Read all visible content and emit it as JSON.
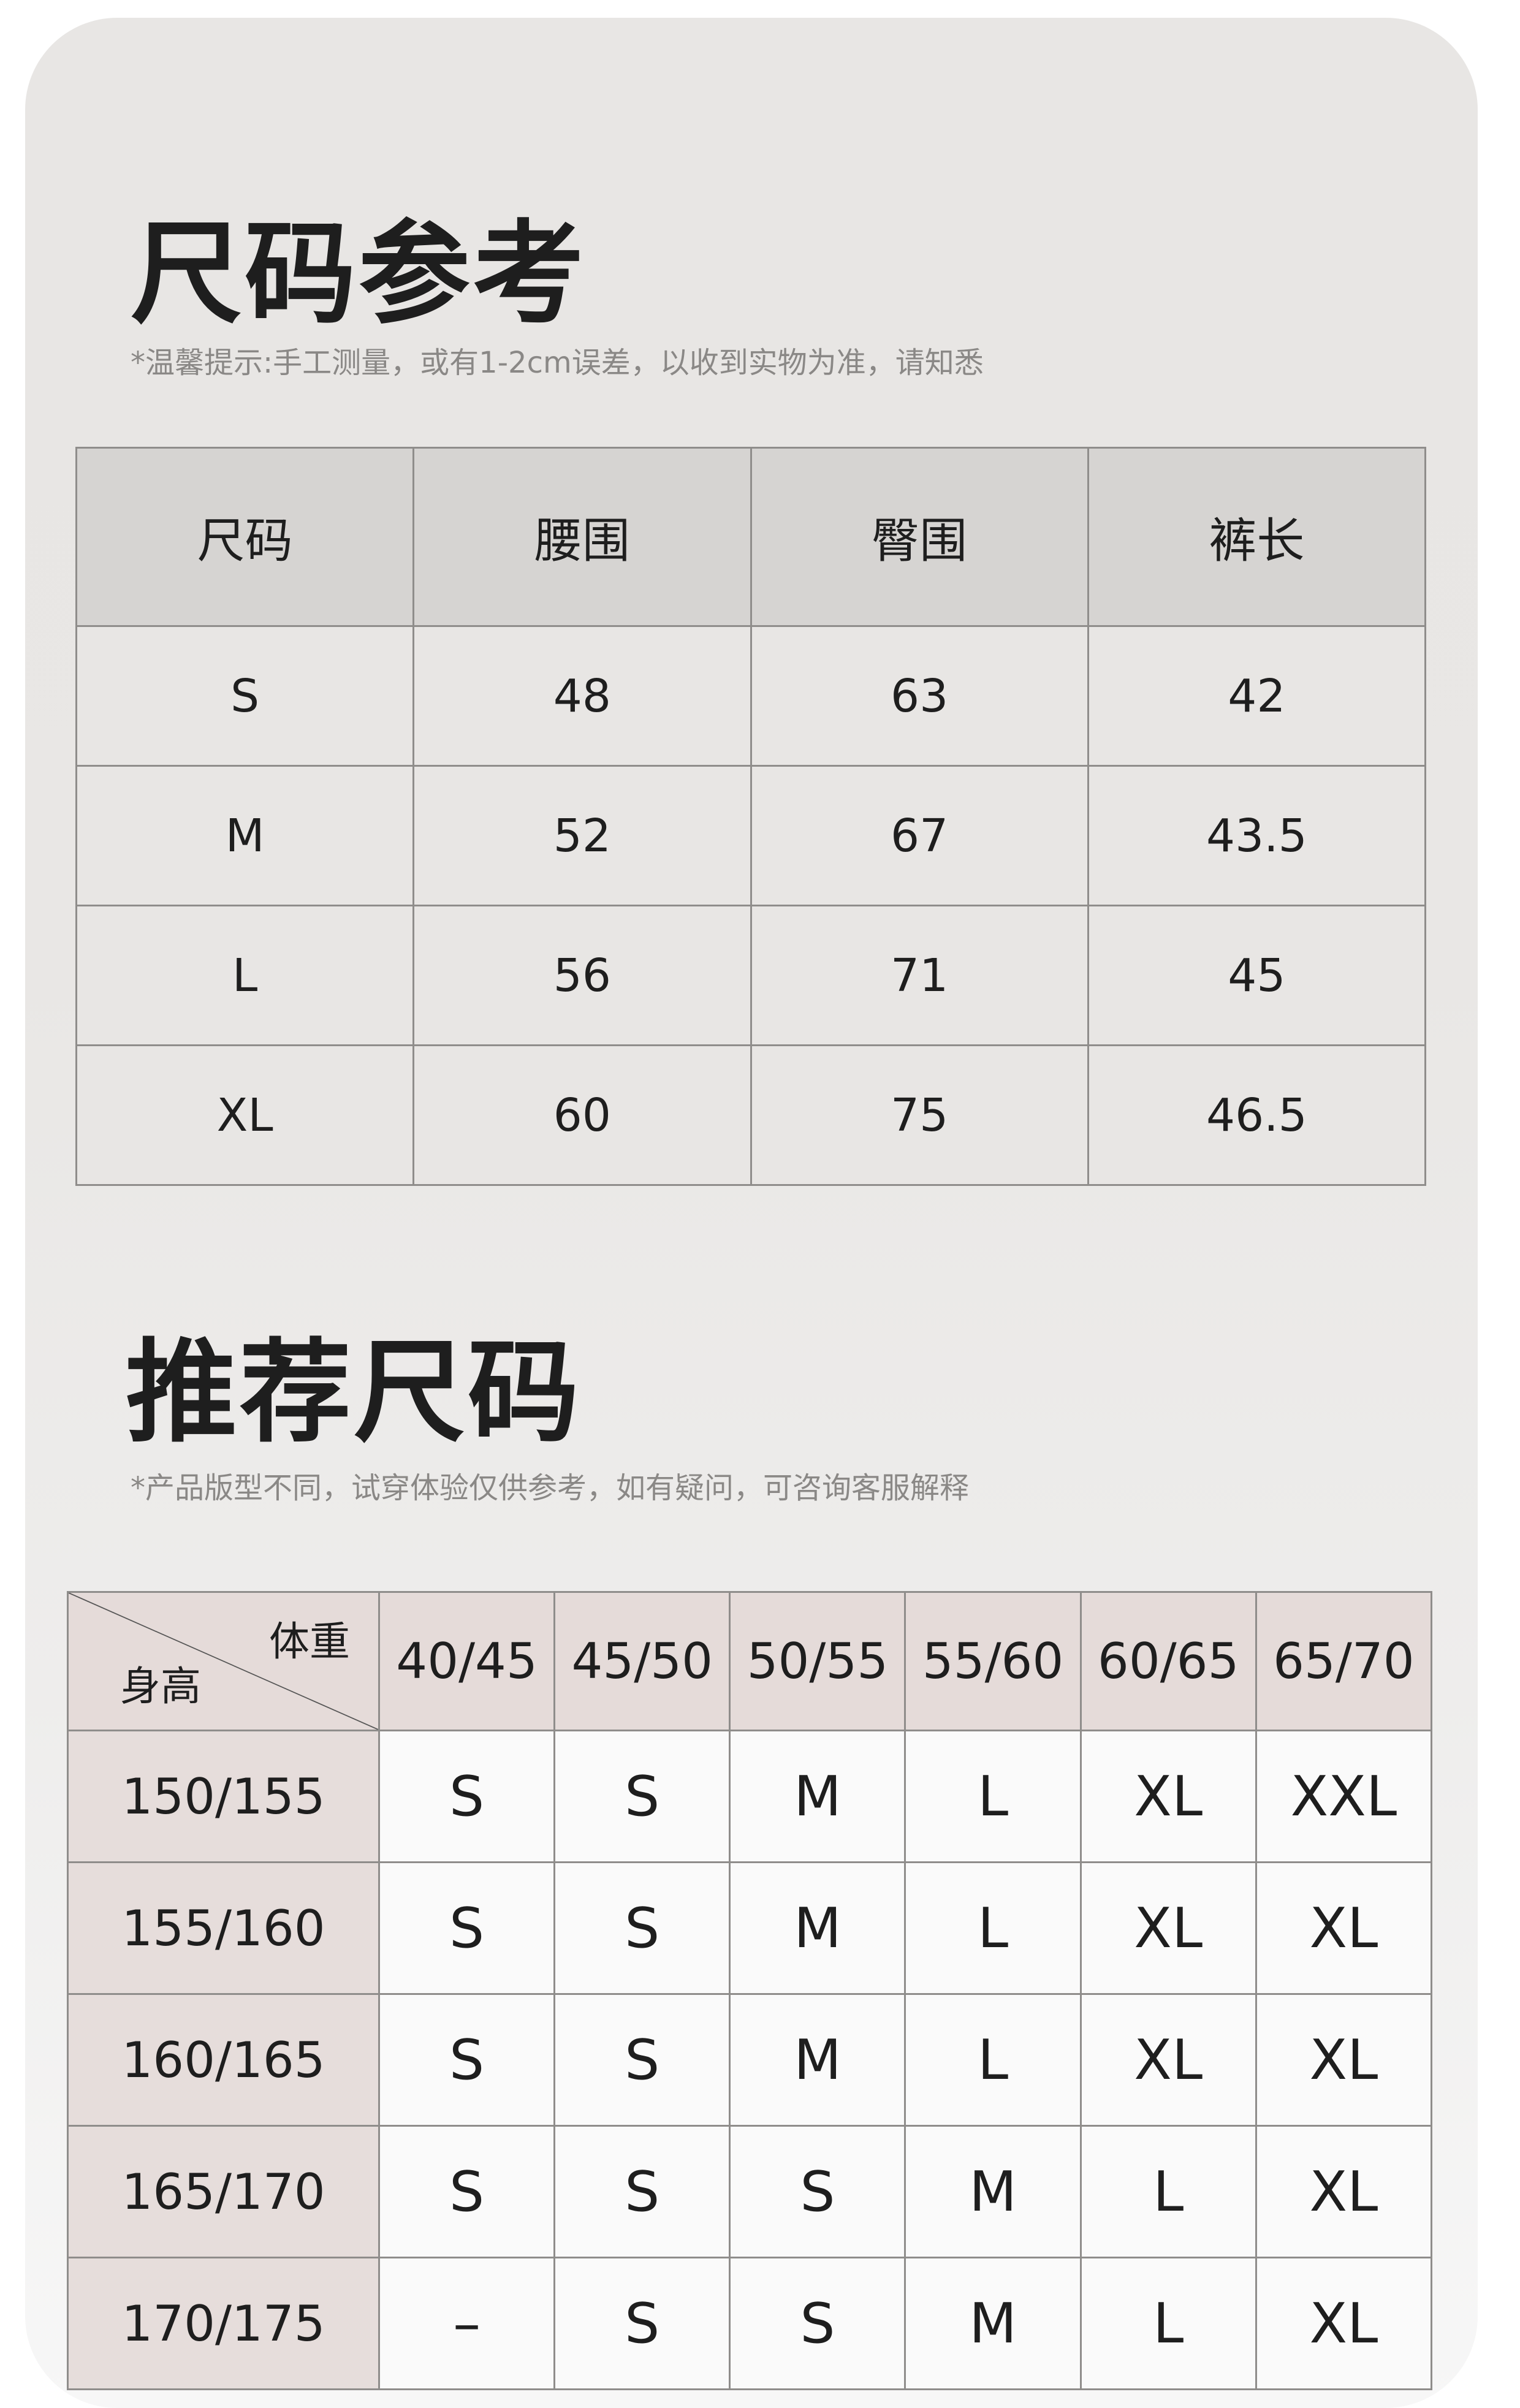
{
  "size_reference": {
    "title": "尺码参考",
    "note": "*温馨提示:手工测量，或有1-2cm误差，以收到实物为准，请知悉",
    "headers": [
      "尺码",
      "腰围",
      "臀围",
      "裤长"
    ],
    "rows": [
      [
        "S",
        "48",
        "63",
        "42"
      ],
      [
        "M",
        "52",
        "67",
        "43.5"
      ],
      [
        "L",
        "56",
        "71",
        "45"
      ],
      [
        "XL",
        "60",
        "75",
        "46.5"
      ]
    ]
  },
  "recommended_size": {
    "title": "推荐尺码",
    "note": "*产品版型不同，试穿体验仅供参考，如有疑问，可咨询客服解释",
    "corner_weight_label": "体重",
    "corner_height_label": "身高",
    "weight_columns": [
      "40/45",
      "45/50",
      "50/55",
      "55/60",
      "60/65",
      "65/70"
    ],
    "rows": [
      {
        "height": "150/155",
        "sizes": [
          "S",
          "S",
          "M",
          "L",
          "XL",
          "XXL"
        ]
      },
      {
        "height": "155/160",
        "sizes": [
          "S",
          "S",
          "M",
          "L",
          "XL",
          "XL"
        ]
      },
      {
        "height": "160/165",
        "sizes": [
          "S",
          "S",
          "M",
          "L",
          "XL",
          "XL"
        ]
      },
      {
        "height": "165/170",
        "sizes": [
          "S",
          "S",
          "S",
          "M",
          "L",
          "XL"
        ]
      },
      {
        "height": "170/175",
        "sizes": [
          "–",
          "S",
          "S",
          "M",
          "L",
          "XL"
        ]
      }
    ]
  }
}
